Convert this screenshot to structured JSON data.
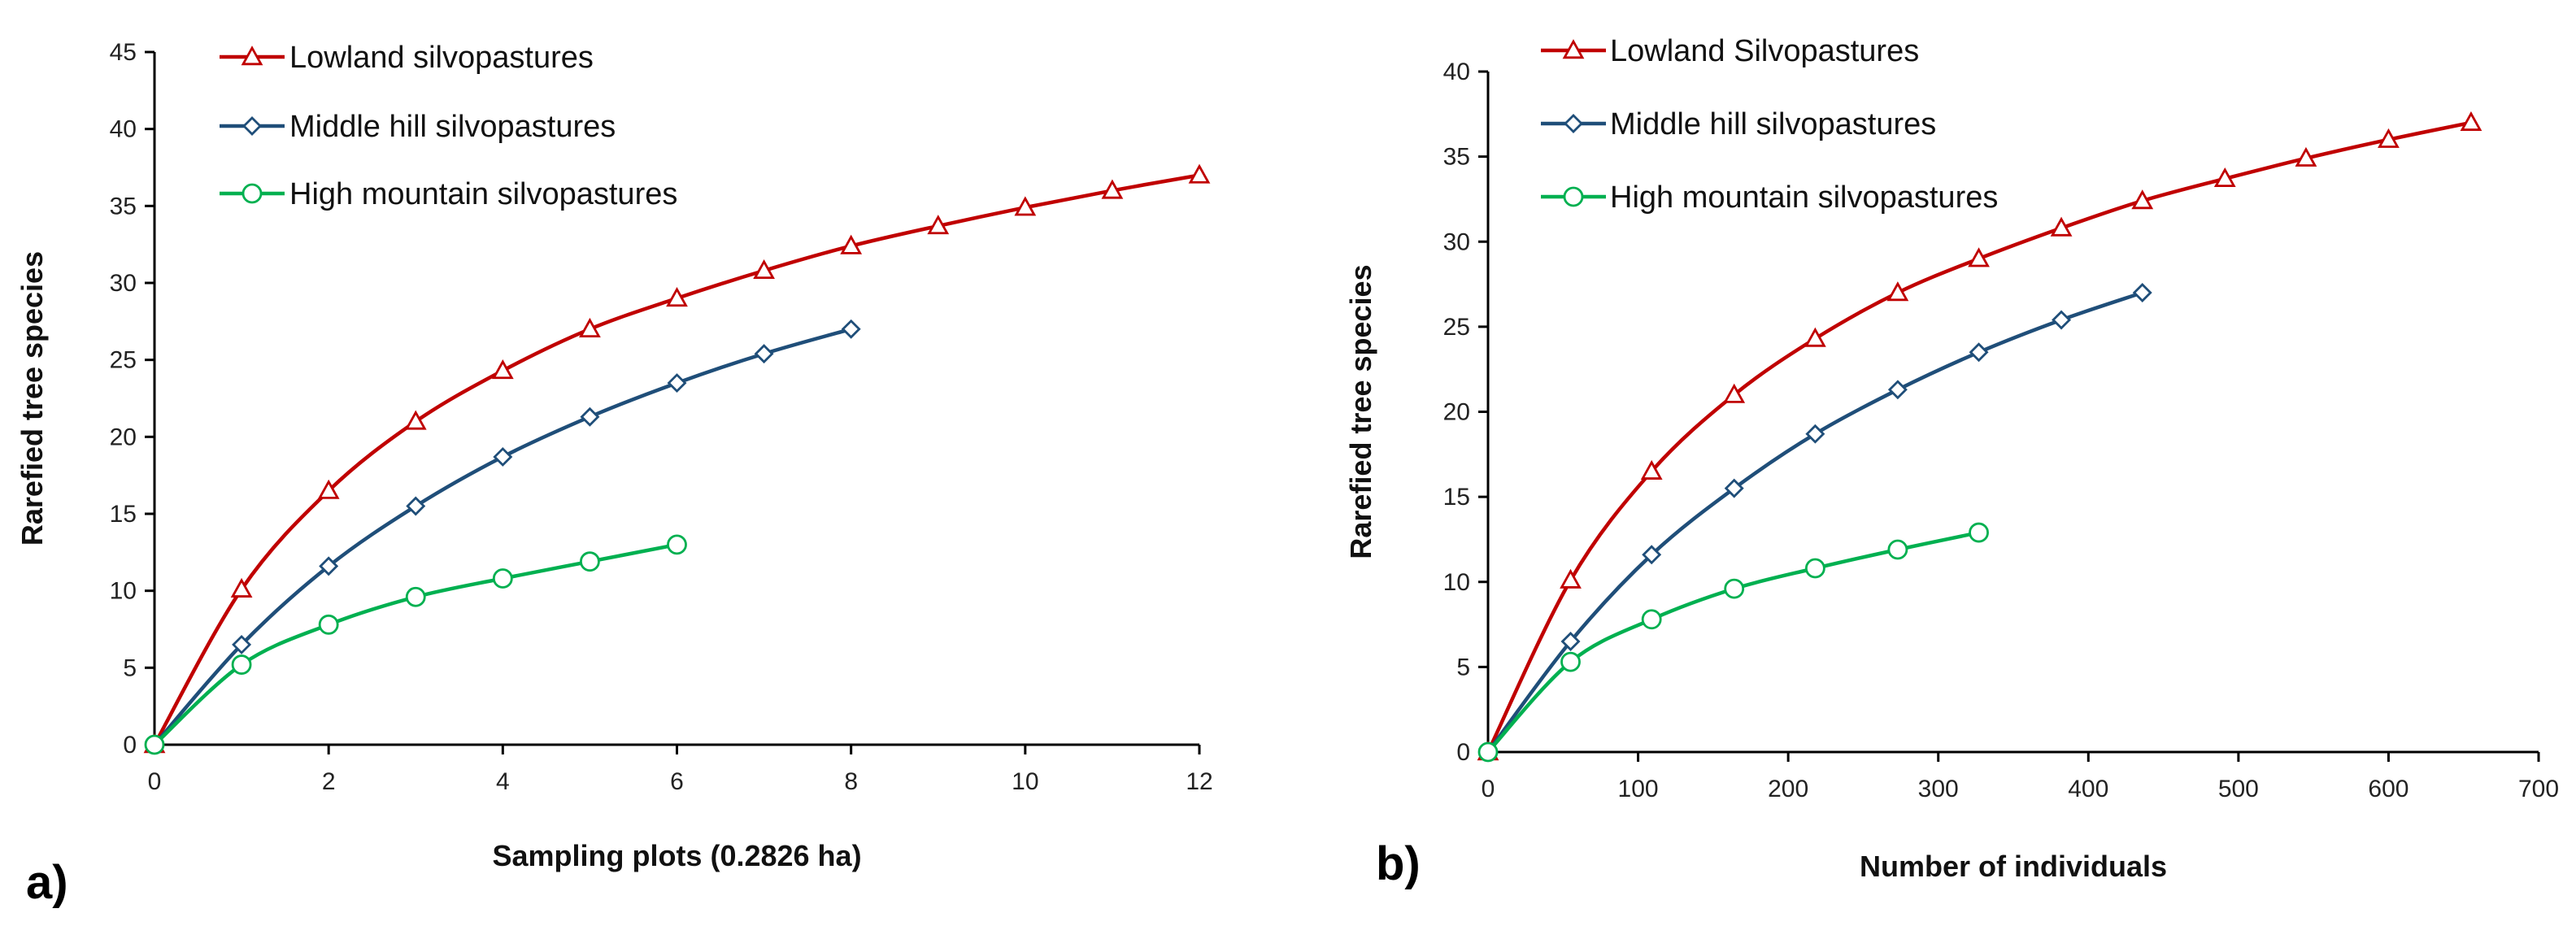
{
  "chart_data": [
    {
      "type": "line",
      "panel_label": "a)",
      "title": "",
      "xlabel": "Sampling plots (0.2826 ha)",
      "ylabel": "Rarefied tree species",
      "xlim": [
        0,
        12
      ],
      "ylim": [
        0,
        45
      ],
      "xticks": [
        0,
        2,
        4,
        6,
        8,
        10,
        12
      ],
      "yticks": [
        0,
        5,
        10,
        15,
        20,
        25,
        30,
        35,
        40,
        45
      ],
      "grid": false,
      "legend_position": "top-left",
      "series": [
        {
          "name": "Lowland silvopastures",
          "color": "#c00000",
          "marker": "triangle",
          "x": [
            0,
            1,
            2,
            3,
            4,
            5,
            6,
            7,
            8,
            9,
            10,
            11,
            12
          ],
          "y": [
            0,
            10.1,
            16.5,
            21.0,
            24.3,
            27.0,
            29.0,
            30.8,
            32.4,
            33.7,
            34.9,
            36.0,
            37.0
          ]
        },
        {
          "name": "Middle hill silvopastures",
          "color": "#1f4e79",
          "marker": "diamond",
          "x": [
            0,
            1,
            2,
            3,
            4,
            5,
            6,
            7,
            8
          ],
          "y": [
            0,
            6.5,
            11.6,
            15.5,
            18.7,
            21.3,
            23.5,
            25.4,
            27.0
          ]
        },
        {
          "name": "High mountain silvopastures",
          "color": "#00b050",
          "marker": "circle",
          "x": [
            0,
            1,
            2,
            3,
            4,
            5,
            6
          ],
          "y": [
            0,
            5.2,
            7.8,
            9.6,
            10.8,
            11.9,
            13.0
          ]
        }
      ]
    },
    {
      "type": "line",
      "panel_label": "b)",
      "title": "",
      "xlabel": "Number of individuals",
      "ylabel": "Rarefied tree species",
      "xlim": [
        0,
        700
      ],
      "ylim": [
        0,
        40
      ],
      "xticks": [
        0,
        100,
        200,
        300,
        400,
        500,
        600,
        700
      ],
      "yticks": [
        0,
        5,
        10,
        15,
        20,
        25,
        30,
        35,
        40
      ],
      "grid": false,
      "legend_position": "top-left",
      "series": [
        {
          "name": "Lowland Silvopastures",
          "color": "#c00000",
          "marker": "triangle",
          "x": [
            0,
            55,
            109,
            164,
            218,
            273,
            327,
            382,
            436,
            491,
            545,
            600,
            655
          ],
          "y": [
            0,
            10.1,
            16.5,
            21.0,
            24.3,
            27.0,
            29.0,
            30.8,
            32.4,
            33.7,
            34.9,
            36.0,
            37.0
          ]
        },
        {
          "name": "Middle hill silvopastures",
          "color": "#1f4e79",
          "marker": "diamond",
          "x": [
            0,
            55,
            109,
            164,
            218,
            273,
            327,
            382,
            436
          ],
          "y": [
            0,
            6.5,
            11.6,
            15.5,
            18.7,
            21.3,
            23.5,
            25.4,
            27.0
          ]
        },
        {
          "name": "High mountain silvopastures",
          "color": "#00b050",
          "marker": "circle",
          "x": [
            0,
            55,
            109,
            164,
            218,
            273,
            327
          ],
          "y": [
            0,
            5.3,
            7.8,
            9.6,
            10.8,
            11.9,
            12.9
          ]
        }
      ]
    }
  ]
}
